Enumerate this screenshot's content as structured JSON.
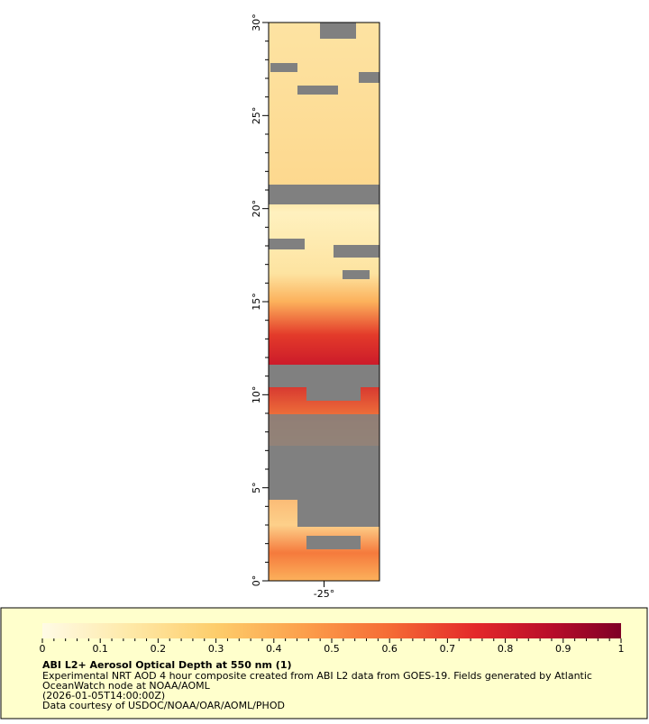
{
  "map": {
    "lat_range": [
      0,
      30
    ],
    "lon_range": [
      -28,
      -22
    ],
    "lat_ticks": [
      {
        "value": 0,
        "label": "0°"
      },
      {
        "value": 5,
        "label": "5°"
      },
      {
        "value": 10,
        "label": "10°"
      },
      {
        "value": 15,
        "label": "15°"
      },
      {
        "value": 20,
        "label": "20°"
      },
      {
        "value": 25,
        "label": "25°"
      },
      {
        "value": 30,
        "label": "30°"
      }
    ],
    "lon_ticks": [
      {
        "value": -25,
        "label": "-25°"
      }
    ]
  },
  "colorbar": {
    "range": [
      0,
      1
    ],
    "ticks": [
      0,
      0.1,
      0.2,
      0.3,
      0.4,
      0.5,
      0.6,
      0.7,
      0.8,
      0.9,
      1
    ]
  },
  "caption": {
    "title": "ABI L2+ Aerosol Optical Depth at 550 nm (1)",
    "lines": [
      "Experimental NRT AOD 4 hour composite created from ABI L2 data from GOES-19. Fields generated by Atlantic",
      "OceanWatch node at NOAA/AOML",
      "(2026-01-05T14:00:00Z)",
      "Data courtesy of USDOC/NOAA/OAR/AOML/PHOD"
    ]
  }
}
